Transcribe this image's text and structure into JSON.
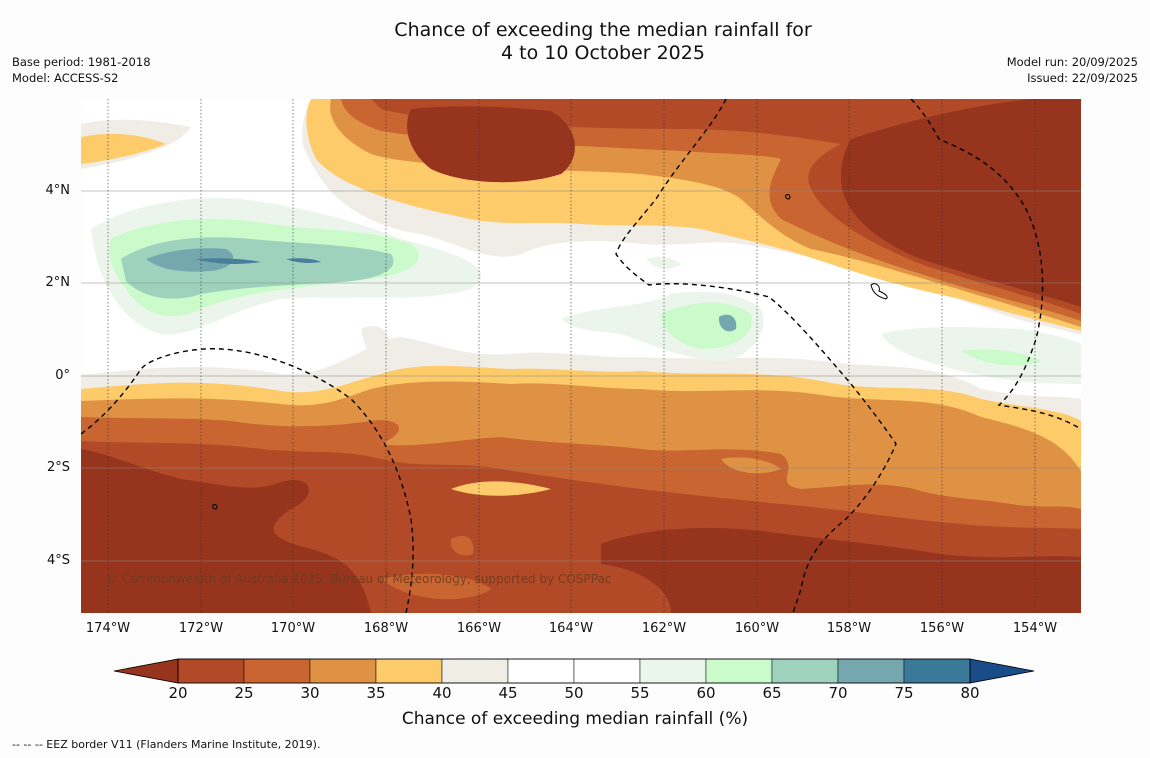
{
  "title": {
    "line1": "Chance of exceeding the median rainfall for",
    "line2": "4 to 10 October 2025"
  },
  "meta_left": {
    "base_period": "Base period: 1981-2018",
    "model": "Model: ACCESS-S2"
  },
  "meta_right": {
    "model_run": "Model run: 20/09/2025",
    "issued": "Issued: 22/09/2025"
  },
  "map": {
    "lat_labels": [
      "4°N",
      "2°N",
      "0°",
      "2°S",
      "4°S"
    ],
    "lon_labels": [
      "174°W",
      "172°W",
      "170°W",
      "168°W",
      "166°W",
      "164°W",
      "162°W",
      "160°W",
      "158°W",
      "156°W",
      "154°W"
    ],
    "copyright": "© Commonwealth of Australia 2025, Bureau of Meteorology, supported by COSPPac",
    "colors": {
      "c15": "#96341e",
      "c20": "#b24a27",
      "c25": "#c86531",
      "c30": "#e09244",
      "c35": "#fecb6b",
      "c40": "#f0ece6",
      "c45": "#ffffff",
      "c55": "#ecf5eb",
      "c60": "#cbfacb",
      "c65": "#9fd2bd",
      "c70": "#75a8ae",
      "c75": "#4a7f9c"
    }
  },
  "colorbar": {
    "ticks": [
      "20",
      "25",
      "30",
      "35",
      "40",
      "45",
      "50",
      "55",
      "60",
      "65",
      "70",
      "75",
      "80"
    ],
    "label": "Chance of exceeding median rainfall (%)",
    "colors": [
      "#96341e",
      "#b24a27",
      "#c86531",
      "#e09244",
      "#fecb6b",
      "#f0ece6",
      "#ffffff",
      "#ffffff",
      "#ecf5eb",
      "#cbfacb",
      "#9fd2bd",
      "#75a8ae",
      "#3a7998",
      "#1a4c8a"
    ]
  },
  "footnote": "--  --  -- EEZ border V11 (Flanders Marine Institute, 2019)."
}
